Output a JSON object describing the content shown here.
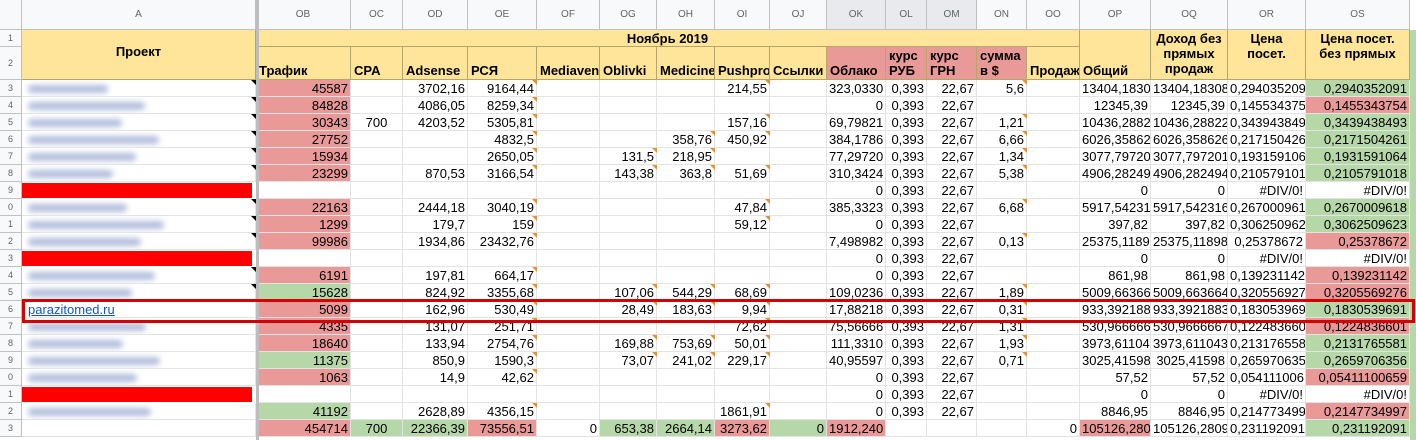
{
  "column_letters": [
    "A",
    "OB",
    "OC",
    "OD",
    "OE",
    "OF",
    "OG",
    "OH",
    "OI",
    "OJ",
    "OK",
    "OL",
    "OM",
    "ON",
    "OO",
    "OP",
    "OQ",
    "OR",
    "OS"
  ],
  "row_numbers": [
    "1",
    "2",
    "3",
    "4",
    "5",
    "6",
    "7",
    "8",
    "9",
    "0",
    "1",
    "2",
    "3",
    "4",
    "5",
    "6",
    "7",
    "8",
    "9",
    "0",
    "1",
    "2",
    "3"
  ],
  "header": {
    "project": "Проект",
    "month": "Ноябрь 2019",
    "columns": [
      "Трафик",
      "CPA",
      "Adsense",
      "РСЯ",
      "Mediaven",
      "Oblivki",
      "Medicine",
      "Pushpro",
      "Ссылки",
      "Облако",
      "курс РУБ",
      "курс ГРН",
      "сумма в $",
      "Продаж",
      "Общий",
      "Доход без прямых продаж",
      "Цена посет.",
      "Цена посет. без прямых"
    ]
  },
  "rows": [
    {
      "project": "",
      "kind": "blur",
      "cells": [
        "45587",
        "",
        "3702,16",
        "9164,44",
        "",
        "",
        "",
        "214,55",
        "",
        "323,0330",
        "0,393",
        "22,67",
        "5,6",
        "",
        "13404,1830",
        "13404,18308",
        "0,294035209",
        "0,2940352091"
      ]
    },
    {
      "project": "",
      "kind": "blur",
      "cells": [
        "84828",
        "",
        "4086,05",
        "8259,34",
        "",
        "",
        "",
        "",
        "",
        "0",
        "0,393",
        "22,67",
        "",
        "",
        "12345,39",
        "12345,39",
        "0,145534375",
        "0,1455343754"
      ]
    },
    {
      "project": "",
      "kind": "blur",
      "cells": [
        "30343",
        "700",
        "4203,52",
        "5305,81",
        "",
        "",
        "",
        "157,16",
        "",
        "69,79821",
        "0,393",
        "22,67",
        "1,21",
        "",
        "10436,2882",
        "10436,28822",
        "0,343943849",
        "0,3439438493"
      ]
    },
    {
      "project": "",
      "kind": "blur",
      "cells": [
        "27752",
        "",
        "",
        "4832,5",
        "",
        "",
        "358,76",
        "450,92",
        "",
        "384,1786",
        "0,393",
        "22,67",
        "6,66",
        "",
        "6026,35862",
        "6026,358626",
        "0,217150426",
        "0,2171504261"
      ]
    },
    {
      "project": "",
      "kind": "blur",
      "cells": [
        "15934",
        "",
        "",
        "2650,05",
        "",
        "131,5",
        "218,95",
        "",
        "",
        "77,29720",
        "0,393",
        "22,67",
        "1,34",
        "",
        "3077,79720",
        "3077,797201",
        "0,193159106",
        "0,1931591064"
      ]
    },
    {
      "project": "",
      "kind": "blur",
      "cells": [
        "23299",
        "",
        "870,53",
        "3166,54",
        "",
        "143,38",
        "363,8",
        "51,69",
        "",
        "310,3424",
        "0,393",
        "22,67",
        "5,38",
        "",
        "4906,28249",
        "4906,282494",
        "0,210579101",
        "0,2105791018"
      ]
    },
    {
      "project": "",
      "kind": "red",
      "cells": [
        "",
        "",
        "",
        "",
        "",
        "",
        "",
        "",
        "",
        "0",
        "0,393",
        "22,67",
        "",
        "",
        "0",
        "0",
        "#DIV/0!",
        "#DIV/0!"
      ]
    },
    {
      "project": "",
      "kind": "blur",
      "cells": [
        "22163",
        "",
        "2444,18",
        "3040,19",
        "",
        "",
        "",
        "47,84",
        "",
        "385,3323",
        "0,393",
        "22,67",
        "6,68",
        "",
        "5917,54231",
        "5917,542316",
        "0,267000961",
        "0,2670009618"
      ]
    },
    {
      "project": "",
      "kind": "blur",
      "cells": [
        "1299",
        "",
        "179,7",
        "159",
        "",
        "",
        "",
        "59,12",
        "",
        "0",
        "0,393",
        "22,67",
        "",
        "",
        "397,82",
        "397,82",
        "0,306250962",
        "0,3062509623"
      ]
    },
    {
      "project": "",
      "kind": "blur",
      "cells": [
        "99986",
        "",
        "1934,86",
        "23432,76",
        "",
        "",
        "",
        "",
        "",
        "7,498982",
        "0,393",
        "22,67",
        "0,13",
        "",
        "25375,1189",
        "25375,11898",
        "0,25378672",
        "0,25378672"
      ]
    },
    {
      "project": "",
      "kind": "red",
      "cells": [
        "",
        "",
        "",
        "",
        "",
        "",
        "",
        "",
        "",
        "0",
        "0,393",
        "22,67",
        "",
        "",
        "0",
        "0",
        "#DIV/0!",
        "#DIV/0!"
      ]
    },
    {
      "project": "",
      "kind": "blur",
      "cells": [
        "6191",
        "",
        "197,81",
        "664,17",
        "",
        "",
        "",
        "",
        "",
        "0",
        "0,393",
        "22,67",
        "",
        "",
        "861,98",
        "861,98",
        "0,139231142",
        "0,139231142"
      ]
    },
    {
      "project": "",
      "kind": "blur",
      "cells": [
        "15628",
        "",
        "824,92",
        "3355,68",
        "",
        "107,06",
        "544,29",
        "68,69",
        "",
        "109,0236",
        "0,393",
        "22,67",
        "1,89",
        "",
        "5009,66366",
        "5009,663664",
        "0,320556927",
        "0,3205569276"
      ]
    },
    {
      "project": "parazitomed.ru",
      "kind": "link",
      "cells": [
        "5099",
        "",
        "162,96",
        "530,49",
        "",
        "28,49",
        "183,63",
        "9,94",
        "",
        "17,88218",
        "0,393",
        "22,67",
        "0,31",
        "",
        "933,392188",
        "933,3921883",
        "0,183053969",
        "0,1830539691"
      ]
    },
    {
      "project": "",
      "kind": "blur",
      "cells": [
        "4335",
        "",
        "131,07",
        "251,71",
        "",
        "",
        "",
        "72,62",
        "",
        "75,56666",
        "0,393",
        "22,67",
        "1,31",
        "",
        "530,966666",
        "530,9666667",
        "0,122483660",
        "0,1224836601"
      ]
    },
    {
      "project": "",
      "kind": "blur",
      "cells": [
        "18640",
        "",
        "133,94",
        "2754,76",
        "",
        "169,88",
        "753,69",
        "50,01",
        "",
        "111,3310",
        "0,393",
        "22,67",
        "1,93",
        "",
        "3973,61104",
        "3973,611043",
        "0,213176558",
        "0,2131765581"
      ]
    },
    {
      "project": "",
      "kind": "blur",
      "cells": [
        "11375",
        "",
        "850,9",
        "1590,3",
        "",
        "73,07",
        "241,02",
        "229,17",
        "",
        "40,95597",
        "0,393",
        "22,67",
        "0,71",
        "",
        "3025,41598",
        "3025,41598",
        "0,265970635",
        "0,2659706356"
      ]
    },
    {
      "project": "",
      "kind": "blur",
      "cells": [
        "1063",
        "",
        "14,9",
        "42,62",
        "",
        "",
        "",
        "",
        "",
        "0",
        "0,393",
        "22,67",
        "",
        "",
        "57,52",
        "57,52",
        "0,054111006",
        "0,05411100659"
      ]
    },
    {
      "project": "",
      "kind": "red",
      "cells": [
        "",
        "",
        "",
        "",
        "",
        "",
        "",
        "",
        "",
        "0",
        "0,393",
        "22,67",
        "",
        "",
        "0",
        "0",
        "#DIV/0!",
        "#DIV/0!"
      ]
    },
    {
      "project": "",
      "kind": "blur",
      "cells": [
        "41192",
        "",
        "2628,89",
        "4356,15",
        "",
        "",
        "",
        "1861,91",
        "",
        "0",
        "0,393",
        "22,67",
        "",
        "",
        "8846,95",
        "8846,95",
        "0,214773499",
        "0,2147734997"
      ]
    },
    {
      "project": "",
      "kind": "total",
      "cells": [
        "454714",
        "700",
        "22366,39",
        "73556,51",
        "0",
        "653,38",
        "2664,14",
        "3273,62",
        "0",
        "1912,240",
        "",
        "",
        "",
        "0",
        "105126,280",
        "105126,2809",
        "0,231192091",
        "0,231192091"
      ]
    }
  ],
  "fills": {
    "traffic": [
      "red",
      "red",
      "red",
      "red",
      "red",
      "red",
      "",
      "red",
      "red",
      "red",
      "",
      "red",
      "green",
      "red",
      "red",
      "red",
      "green",
      "red",
      "",
      "green",
      "red"
    ],
    "last": [
      "green",
      "red",
      "green",
      "green",
      "green",
      "green",
      "",
      "green",
      "green",
      "red",
      "",
      "red",
      "red",
      "green",
      "red",
      "green",
      "green",
      "red",
      "",
      "red",
      "green"
    ]
  },
  "colors": {
    "header_yellow": "#ffe599",
    "header_red": "#ea9999",
    "cell_red": "#ea9999",
    "cell_green": "#b6d7a8",
    "highlight": "#d50000",
    "link": "#1155cc"
  }
}
